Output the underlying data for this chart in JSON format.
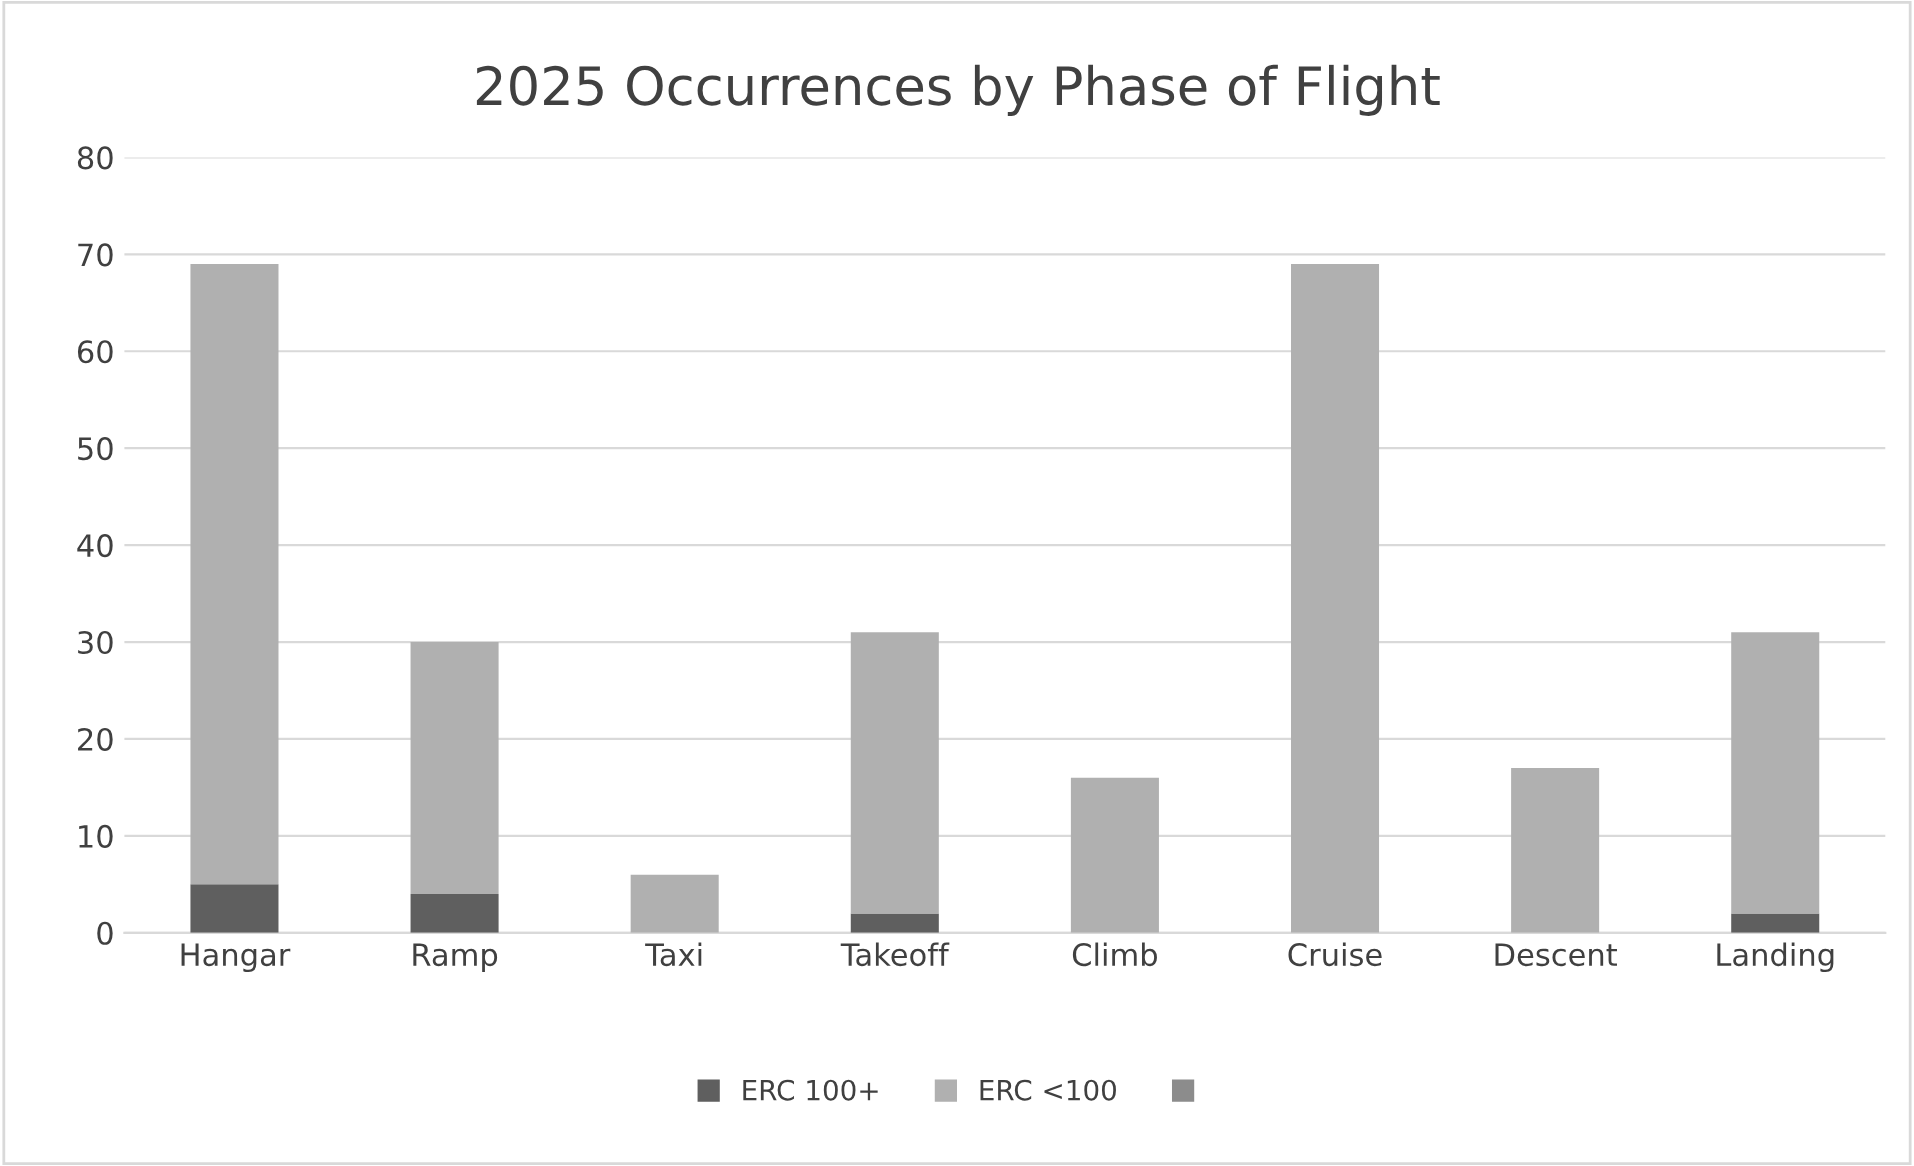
{
  "chart_data": {
    "type": "bar",
    "title": "2025 Occurrences by Phase of Flight",
    "stacked": true,
    "categories": [
      "Hangar",
      "Ramp",
      "Taxi",
      "Takeoff",
      "Climb",
      "Cruise",
      "Descent",
      "Landing"
    ],
    "series": [
      {
        "name": "ERC 100+",
        "color": "#5f5f5f",
        "values": [
          5,
          4,
          0,
          2,
          0,
          0,
          0,
          2
        ]
      },
      {
        "name": "ERC <100",
        "color": "#b0b0b0",
        "values": [
          64,
          26,
          6,
          29,
          16,
          69,
          17,
          29
        ]
      },
      {
        "color": "#8c8c8c",
        "values": [
          null,
          null,
          null,
          null,
          null,
          null,
          null,
          null
        ]
      }
    ],
    "ylim": [
      0,
      80
    ],
    "yticks": [
      0,
      10,
      20,
      30,
      40,
      50,
      60,
      70,
      80
    ],
    "grid": "y",
    "legend": "bottom"
  }
}
